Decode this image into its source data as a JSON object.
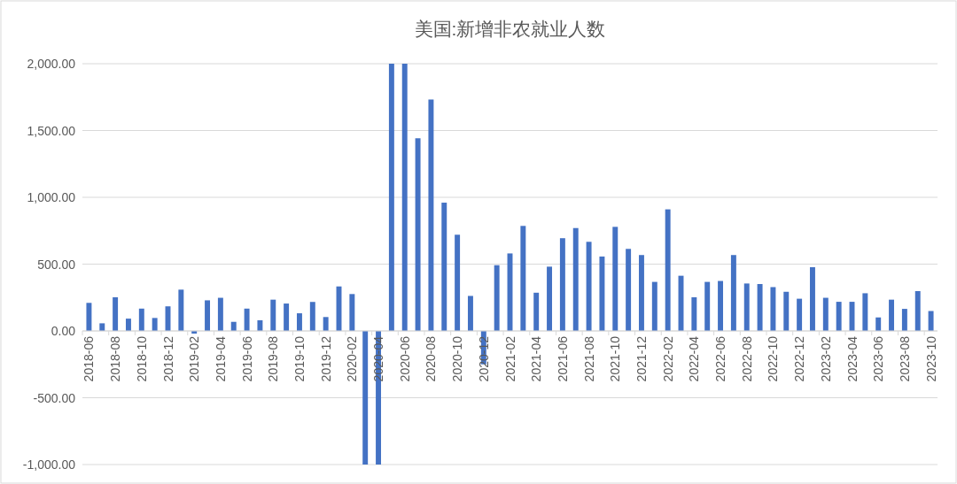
{
  "chart_data": {
    "type": "bar",
    "title": "美国:新增非农就业人数",
    "categories": [
      "2018-06",
      null,
      "2018-08",
      null,
      "2018-10",
      null,
      "2018-12",
      null,
      "2019-02",
      null,
      "2019-04",
      null,
      "2019-06",
      null,
      "2019-08",
      null,
      "2019-10",
      null,
      "2019-12",
      null,
      "2020-02",
      null,
      "2020-04",
      null,
      "2020-06",
      null,
      "2020-08",
      null,
      "2020-10",
      null,
      "2020-12",
      null,
      "2021-02",
      null,
      "2021-04",
      null,
      "2021-06",
      null,
      "2021-08",
      null,
      "2021-10",
      null,
      "2021-12",
      null,
      "2022-02",
      null,
      "2022-04",
      null,
      "2022-06",
      null,
      "2022-08",
      null,
      "2022-10",
      null,
      "2022-12",
      null,
      "2023-02",
      null,
      "2023-04",
      null,
      "2023-06",
      null,
      "2023-08",
      null,
      "2023-10"
    ],
    "values": [
      210,
      57,
      252,
      92,
      167,
      97,
      184,
      309,
      -20,
      229,
      248,
      68,
      167,
      80,
      234,
      205,
      132,
      217,
      104,
      333,
      276,
      -1000,
      -1000,
      2000,
      2000,
      1442,
      1732,
      960,
      720,
      262,
      -250,
      492,
      580,
      786,
      286,
      481,
      694,
      770,
      667,
      557,
      779,
      614,
      568,
      367,
      910,
      413,
      252,
      367,
      374,
      568,
      355,
      351,
      328,
      293,
      241,
      477,
      248,
      218,
      218,
      282,
      101,
      234,
      165,
      298,
      149
    ],
    "color": "#4472c4",
    "ylim": [
      -1000,
      2000
    ],
    "yticks": [
      {
        "value": -1000,
        "label": "-1,000.00"
      },
      {
        "value": -500,
        "label": "-500.00"
      },
      {
        "value": 0,
        "label": "0.00"
      },
      {
        "value": 500,
        "label": "500.00"
      },
      {
        "value": 1000,
        "label": "1,000.00"
      },
      {
        "value": 1500,
        "label": "1,500.00"
      },
      {
        "value": 2000,
        "label": "2,000.00"
      }
    ],
    "grid": "y"
  }
}
